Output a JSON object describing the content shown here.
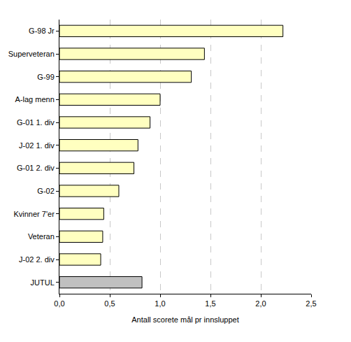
{
  "chart_data": {
    "type": "bar",
    "orientation": "horizontal",
    "x_label": "Antall scorete mål pr innsluppet",
    "categories": [
      "G-98 Jr",
      "Superveteran",
      "G-99",
      "A-lag menn",
      "G-01 1. div",
      "J-02 1. div",
      "G-01 2. div",
      "G-02",
      "Kvinner 7'er",
      "Veteran",
      "J-02 2. div",
      "JUTUL"
    ],
    "values": [
      2.22,
      1.44,
      1.31,
      1.0,
      0.9,
      0.78,
      0.74,
      0.59,
      0.44,
      0.43,
      0.41,
      0.82
    ],
    "colors": [
      "#ffffc0",
      "#ffffc0",
      "#ffffc0",
      "#ffffc0",
      "#ffffc0",
      "#ffffc0",
      "#ffffc0",
      "#ffffc0",
      "#ffffc0",
      "#ffffc0",
      "#ffffc0",
      "#c0c0c0"
    ],
    "xlim": [
      0,
      2.5
    ],
    "xticks": [
      {
        "value": 0,
        "label": "0,0"
      },
      {
        "value": 0.5,
        "label": "0,5"
      },
      {
        "value": 1,
        "label": "1,0"
      },
      {
        "value": 1.5,
        "label": "1,5"
      },
      {
        "value": 2,
        "label": "2,0"
      },
      {
        "value": 2.5,
        "label": "2,5"
      }
    ],
    "grid": true
  }
}
